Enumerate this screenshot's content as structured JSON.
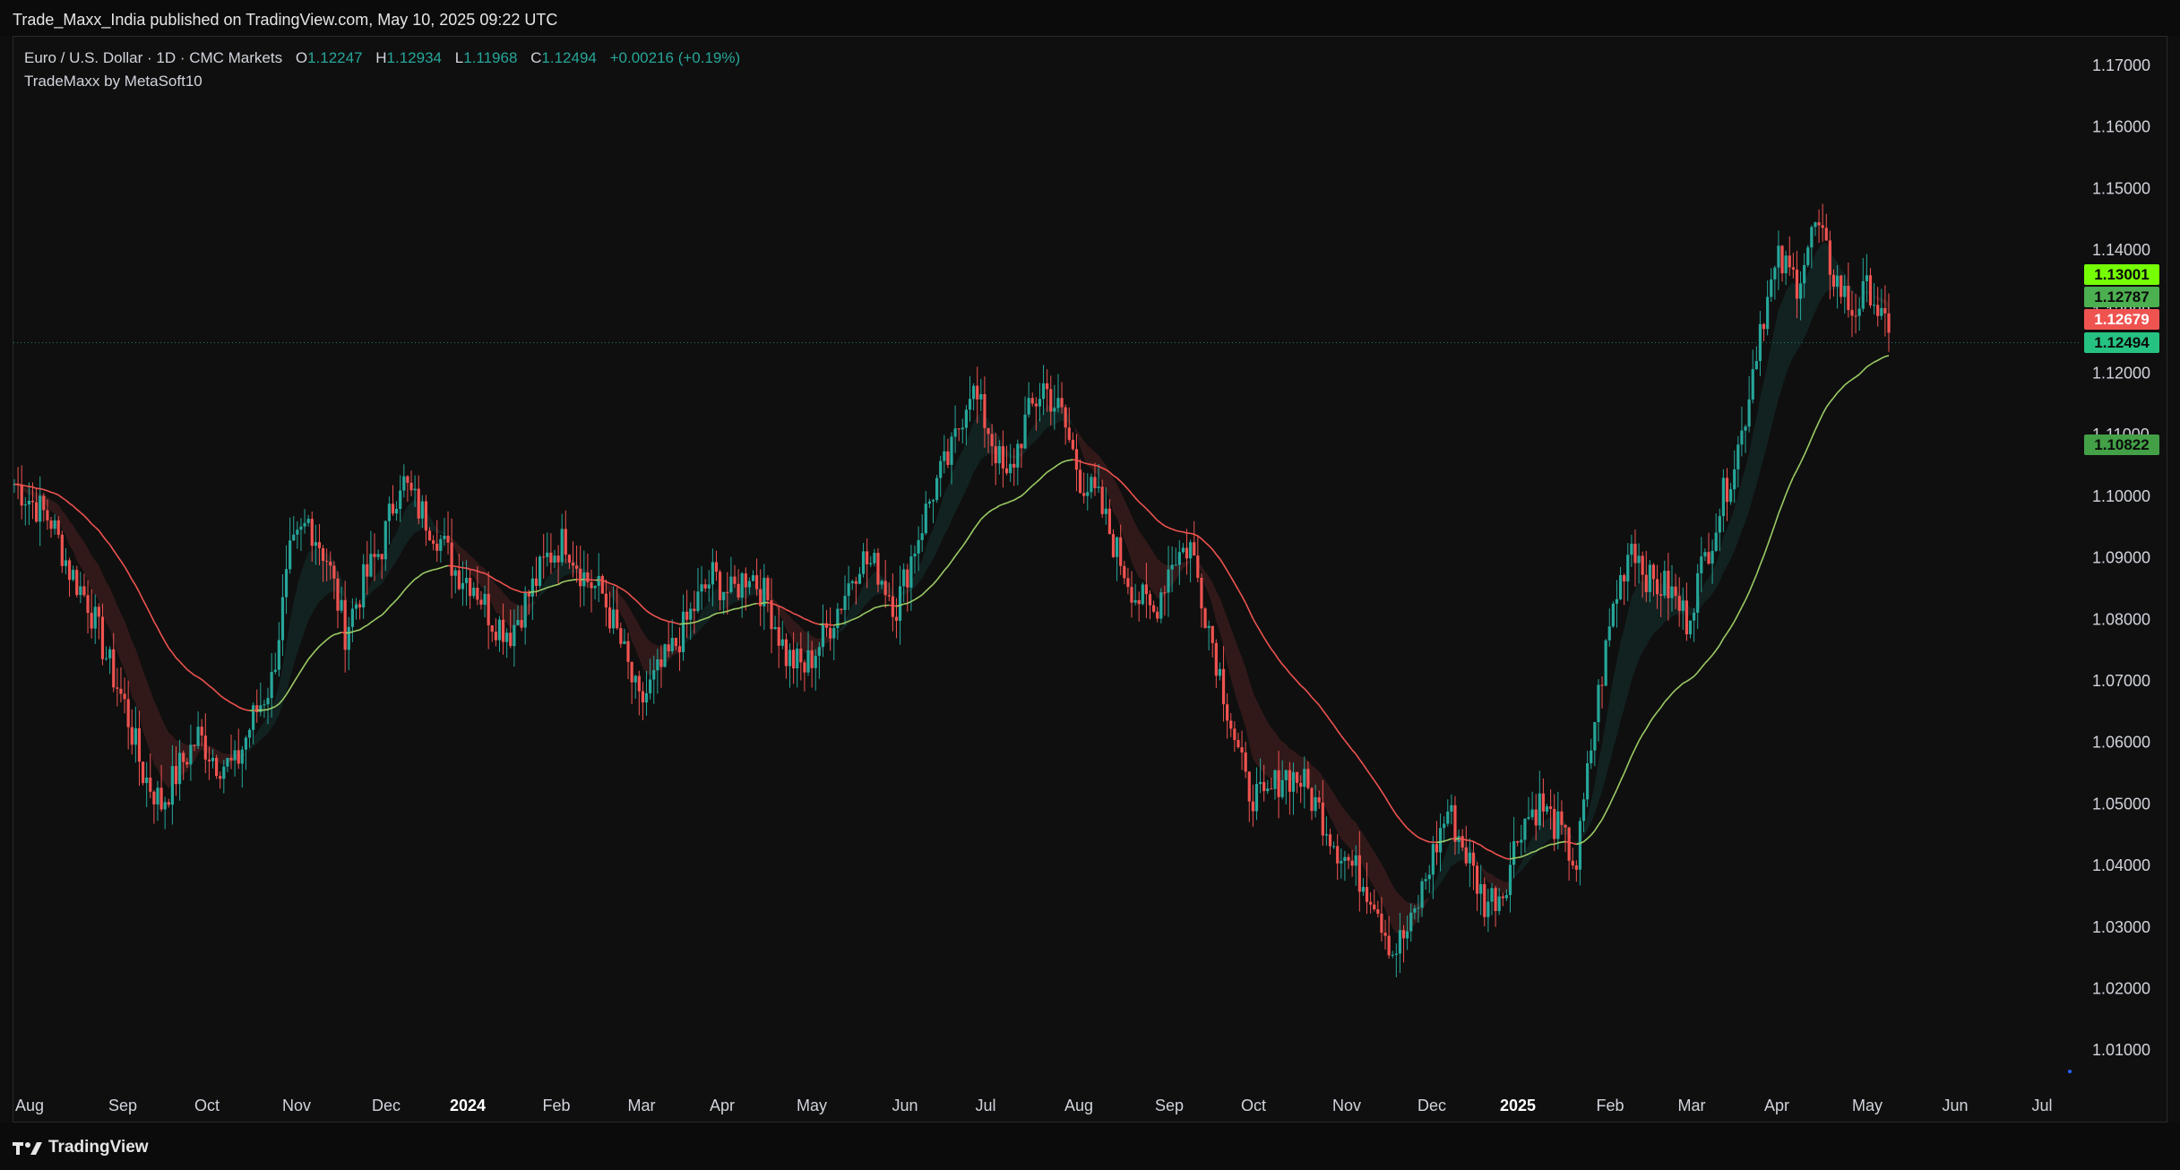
{
  "header": {
    "publish_line": "Trade_Maxx_India published on TradingView.com, May 10, 2025 09:22 UTC"
  },
  "legend": {
    "symbol": "Euro / U.S. Dollar · 1D · CMC Markets",
    "o_label": "O",
    "o_value": "1.12247",
    "h_label": "H",
    "h_value": "1.12934",
    "l_label": "L",
    "l_value": "1.11968",
    "c_label": "C",
    "c_value": "1.12494",
    "change": "+0.00216 (+0.19%)",
    "indicator": "TradeMaxx by MetaSoft10"
  },
  "footer": {
    "brand": "TradingView"
  },
  "colors": {
    "up": "#26a69a",
    "down": "#ef5350",
    "slow_line": "#9ccc65",
    "fast_line": "#ef5350",
    "bg": "#0f0f0f"
  },
  "chart_data": {
    "type": "candlestick",
    "y_ticks": [
      "1.17000",
      "1.16000",
      "1.15000",
      "1.14000",
      "1.13000",
      "1.12000",
      "1.11000",
      "1.10000",
      "1.09000",
      "1.08000",
      "1.07000",
      "1.06000",
      "1.05000",
      "1.04000",
      "1.03000",
      "1.02000",
      "1.01000"
    ],
    "ylim": [
      1.005,
      1.172
    ],
    "x_ticks": [
      "Aug",
      "Sep",
      "Oct",
      "Nov",
      "Dec",
      "2024",
      "Feb",
      "Mar",
      "Apr",
      "May",
      "Jun",
      "Jul",
      "Aug",
      "Sep",
      "Oct",
      "Nov",
      "Dec",
      "2025",
      "Feb",
      "Mar",
      "Apr",
      "May",
      "Jun",
      "Jul"
    ],
    "close_path": [
      [
        0,
        1.102
      ],
      [
        5,
        1.099
      ],
      [
        10,
        1.096
      ],
      [
        15,
        1.088
      ],
      [
        20,
        1.083
      ],
      [
        25,
        1.074
      ],
      [
        30,
        1.066
      ],
      [
        35,
        1.055
      ],
      [
        40,
        1.05
      ],
      [
        45,
        1.056
      ],
      [
        50,
        1.061
      ],
      [
        55,
        1.057
      ],
      [
        60,
        1.056
      ],
      [
        65,
        1.064
      ],
      [
        70,
        1.07
      ],
      [
        75,
        1.09
      ],
      [
        80,
        1.096
      ],
      [
        85,
        1.09
      ],
      [
        90,
        1.078
      ],
      [
        95,
        1.086
      ],
      [
        100,
        1.092
      ],
      [
        105,
        1.103
      ],
      [
        110,
        1.098
      ],
      [
        115,
        1.094
      ],
      [
        120,
        1.088
      ],
      [
        125,
        1.086
      ],
      [
        130,
        1.08
      ],
      [
        135,
        1.078
      ],
      [
        140,
        1.084
      ],
      [
        145,
        1.09
      ],
      [
        150,
        1.093
      ],
      [
        155,
        1.087
      ],
      [
        160,
        1.084
      ],
      [
        165,
        1.076
      ],
      [
        170,
        1.066
      ],
      [
        175,
        1.071
      ],
      [
        180,
        1.076
      ],
      [
        185,
        1.082
      ],
      [
        190,
        1.087
      ],
      [
        195,
        1.084
      ],
      [
        200,
        1.088
      ],
      [
        205,
        1.083
      ],
      [
        210,
        1.074
      ],
      [
        215,
        1.072
      ],
      [
        220,
        1.077
      ],
      [
        225,
        1.083
      ],
      [
        230,
        1.09
      ],
      [
        235,
        1.088
      ],
      [
        240,
        1.082
      ],
      [
        245,
        1.092
      ],
      [
        250,
        1.101
      ],
      [
        255,
        1.107
      ],
      [
        260,
        1.118
      ],
      [
        265,
        1.111
      ],
      [
        270,
        1.102
      ],
      [
        275,
        1.112
      ],
      [
        280,
        1.118
      ],
      [
        285,
        1.113
      ],
      [
        290,
        1.103
      ],
      [
        295,
        1.099
      ],
      [
        300,
        1.091
      ],
      [
        305,
        1.084
      ],
      [
        310,
        1.081
      ],
      [
        315,
        1.09
      ],
      [
        320,
        1.092
      ],
      [
        325,
        1.079
      ],
      [
        330,
        1.066
      ],
      [
        335,
        1.053
      ],
      [
        340,
        1.05
      ],
      [
        345,
        1.055
      ],
      [
        350,
        1.054
      ],
      [
        355,
        1.049
      ],
      [
        360,
        1.043
      ],
      [
        365,
        1.039
      ],
      [
        370,
        1.035
      ],
      [
        375,
        1.026
      ],
      [
        380,
        1.03
      ],
      [
        385,
        1.04
      ],
      [
        390,
        1.049
      ],
      [
        395,
        1.042
      ],
      [
        400,
        1.034
      ],
      [
        405,
        1.036
      ],
      [
        410,
        1.047
      ],
      [
        415,
        1.05
      ],
      [
        420,
        1.046
      ],
      [
        425,
        1.04
      ],
      [
        430,
        1.064
      ],
      [
        435,
        1.082
      ],
      [
        440,
        1.093
      ],
      [
        445,
        1.086
      ],
      [
        450,
        1.085
      ],
      [
        455,
        1.08
      ],
      [
        460,
        1.09
      ],
      [
        465,
        1.1
      ],
      [
        470,
        1.11
      ],
      [
        475,
        1.128
      ],
      [
        480,
        1.138
      ],
      [
        485,
        1.135
      ],
      [
        490,
        1.144
      ],
      [
        495,
        1.136
      ],
      [
        500,
        1.13
      ],
      [
        505,
        1.134
      ],
      [
        510,
        1.125
      ]
    ],
    "price_tags": [
      {
        "value": "1.13001",
        "price": 1.13001,
        "color": "#76ff03"
      },
      {
        "value": "1.12787",
        "price": 1.12787,
        "color": "#4caf50"
      },
      {
        "value": "1.12679",
        "price": 1.12679,
        "color": "#ef5350"
      },
      {
        "value": "1.12494",
        "price": 1.12494,
        "color": "#26c281"
      },
      {
        "value": "1.10822",
        "price": 1.10822,
        "color": "#43a047"
      }
    ],
    "last_price": 1.12494
  }
}
